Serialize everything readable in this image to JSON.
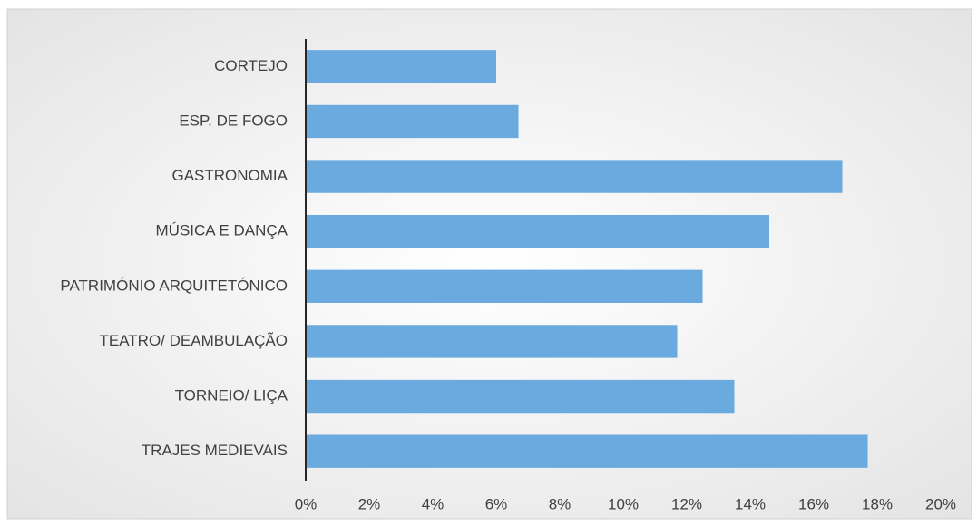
{
  "chart_data": {
    "type": "bar",
    "orientation": "horizontal",
    "categories": [
      "CORTEJO",
      "ESP. DE FOGO",
      "GASTRONOMIA",
      "MÚSICA E DANÇA",
      "PATRIMÓNIO ARQUITETÓNICO",
      "TEATRO/ DEAMBULAÇÃO",
      "TORNEIO/ LIÇA",
      "TRAJES MEDIEVAIS"
    ],
    "values": [
      6.0,
      6.7,
      16.9,
      14.6,
      12.5,
      11.7,
      13.5,
      17.7
    ],
    "color": "#6aaade",
    "xlim": [
      0,
      20
    ],
    "xticks": [
      {
        "value": 0,
        "label": "0%"
      },
      {
        "value": 2,
        "label": "2%"
      },
      {
        "value": 4,
        "label": "4%"
      },
      {
        "value": 6,
        "label": "6%"
      },
      {
        "value": 8,
        "label": "8%"
      },
      {
        "value": 10,
        "label": "10%"
      },
      {
        "value": 12,
        "label": "12%"
      },
      {
        "value": 14,
        "label": "14%"
      },
      {
        "value": 16,
        "label": "16%"
      },
      {
        "value": 18,
        "label": "18%"
      },
      {
        "value": 20,
        "label": "20%"
      }
    ],
    "grid": false
  }
}
